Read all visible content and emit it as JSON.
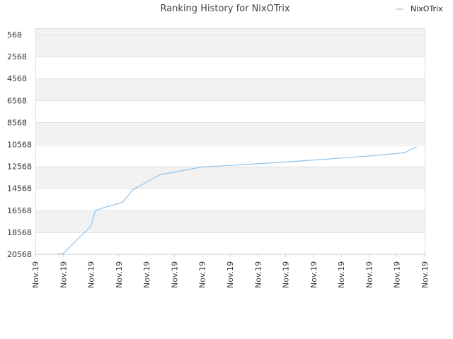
{
  "chart_data": {
    "type": "line",
    "title": "Ranking History for NixOTrix",
    "xlabel": "",
    "ylabel": "",
    "legend": {
      "position": "top-right",
      "entries": [
        "NixOTrix"
      ]
    },
    "grid": true,
    "y_inverted": true,
    "ylim": [
      568,
      20568
    ],
    "y_ticks": [
      568,
      2568,
      4568,
      6568,
      8568,
      10568,
      12568,
      14568,
      16568,
      18568,
      20568
    ],
    "x_ticks": [
      "Nov.19",
      "Nov.19",
      "Nov.19",
      "Nov.19",
      "Nov.19",
      "Nov.19",
      "Nov.19",
      "Nov.19",
      "Nov.19",
      "Nov.19",
      "Nov.19",
      "Nov.19",
      "Nov.19",
      "Nov.19",
      "Nov.19"
    ],
    "series": [
      {
        "name": "NixOTrix",
        "color": "#90c4ec",
        "x": [
          0.8,
          1.0,
          1.5,
          2.0,
          2.15,
          2.5,
          3.0,
          3.15,
          3.5,
          3.85,
          4.5,
          5.0,
          5.5,
          6.0,
          7.0,
          8.0,
          9.0,
          10.0,
          11.0,
          12.0,
          12.5,
          13.0,
          13.3,
          13.7
        ],
        "y": [
          20568,
          20510,
          19250,
          18000,
          16600,
          16300,
          15950,
          15800,
          14700,
          14200,
          13300,
          13100,
          12850,
          12620,
          12480,
          12330,
          12170,
          11990,
          11810,
          11620,
          11500,
          11400,
          11300,
          10800
        ]
      }
    ]
  }
}
